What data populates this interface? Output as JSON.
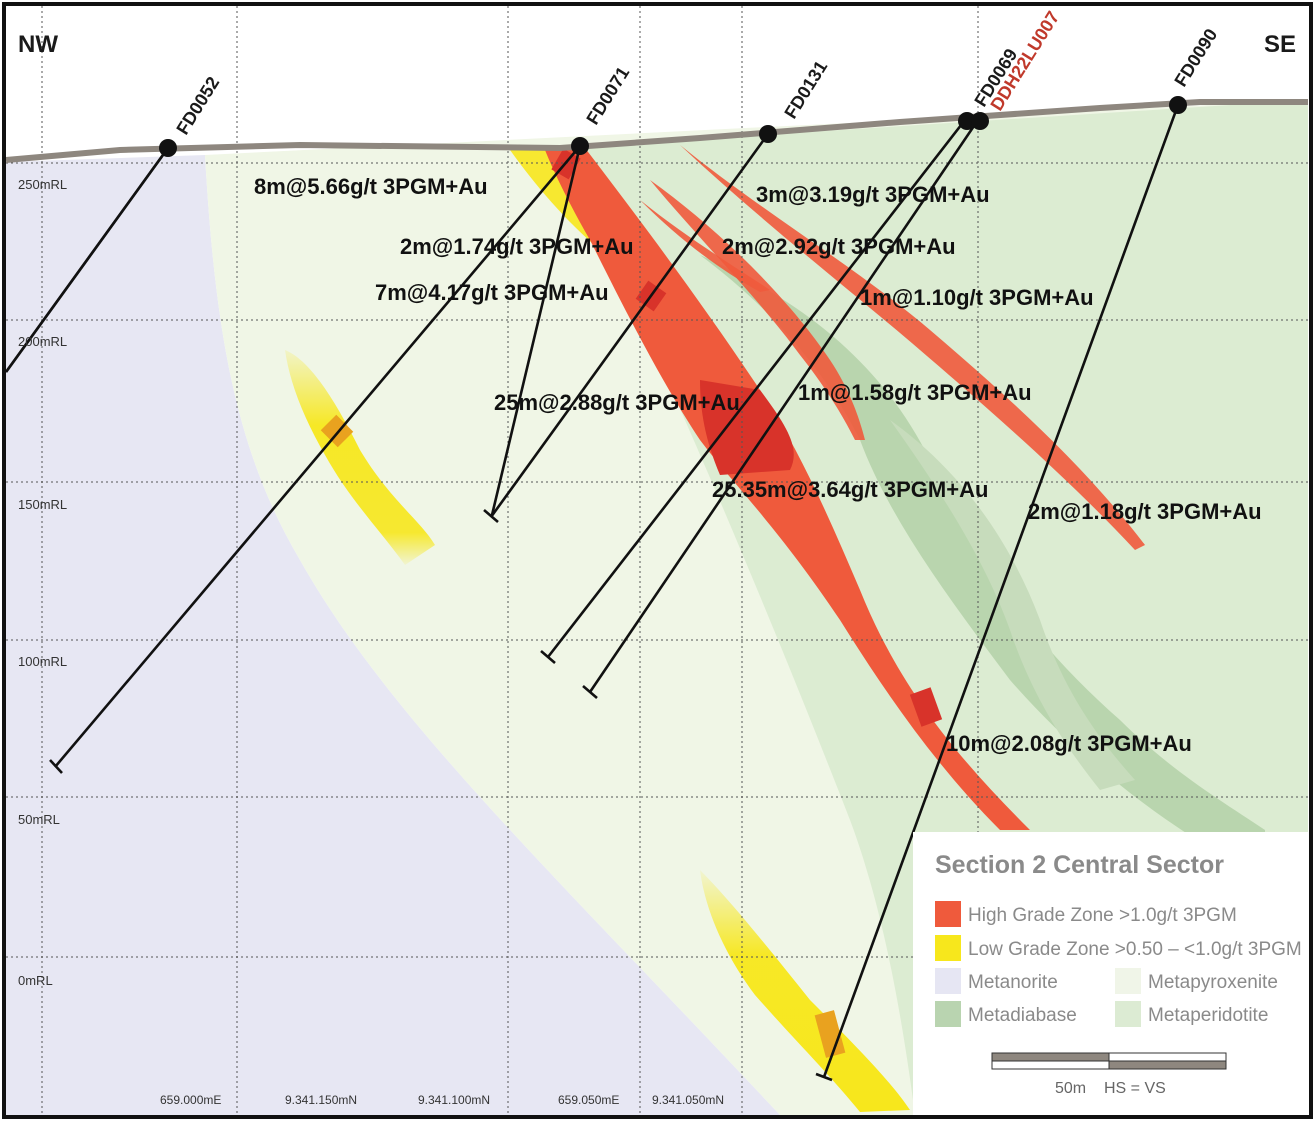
{
  "section": {
    "left_direction": "NW",
    "right_direction": "SE"
  },
  "rl_labels": [
    "250mRL",
    "200mRL",
    "150mRL",
    "100mRL",
    "50mRL",
    "0mRL"
  ],
  "grid_labels": [
    "659.000mE",
    "9.341.150mN",
    "9.341.100mN",
    "659.050mE",
    "9.341.050mN"
  ],
  "drillholes": [
    {
      "id": "FD0052",
      "color": "#1a1a1a"
    },
    {
      "id": "FD0071",
      "color": "#1a1a1a"
    },
    {
      "id": "FD0131",
      "color": "#1a1a1a"
    },
    {
      "id": "FD0069",
      "color": "#1a1a1a"
    },
    {
      "id": "DDH22LU007",
      "color": "#c0392b"
    },
    {
      "id": "FD0090",
      "color": "#1a1a1a"
    }
  ],
  "intercepts": [
    "8m@5.66g/t 3PGM+Au",
    "2m@1.74g/t 3PGM+Au",
    "7m@4.17g/t 3PGM+Au",
    "3m@3.19g/t 3PGM+Au",
    "2m@2.92g/t 3PGM+Au",
    "1m@1.10g/t 3PGM+Au",
    "25m@2.88g/t 3PGM+Au",
    "1m@1.58g/t 3PGM+Au",
    "25.35m@3.64g/t 3PGM+Au",
    "2m@1.18g/t 3PGM+Au",
    "10m@2.08g/t 3PGM+Au"
  ],
  "legend": {
    "title": "Section 2 Central Sector",
    "items": [
      {
        "label": "High Grade Zone >1.0g/t 3PGM",
        "color": "#ef5a3c"
      },
      {
        "label": "Low Grade Zone >0.50 – <1.0g/t 3PGM",
        "color": "#f7e71c"
      },
      {
        "label": "Metanorite",
        "color": "#e6e6f3"
      },
      {
        "label": "Metapyroxenite",
        "color": "#f0f5e8"
      },
      {
        "label": "Metadiabase",
        "color": "#b9d4b0"
      },
      {
        "label": "Metaperidotite",
        "color": "#dcebd3"
      }
    ]
  },
  "scale": {
    "label": "50m",
    "note": "HS = VS"
  },
  "colors": {
    "topography": "#8e877f",
    "frame": "#111111",
    "high_grade": "#ef5a3c",
    "high_grade_dark": "#d8332a",
    "low_grade": "#f7e71c"
  }
}
